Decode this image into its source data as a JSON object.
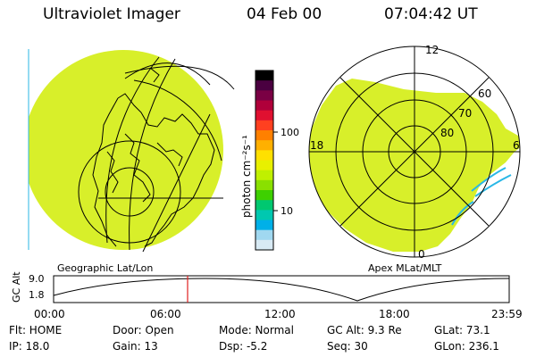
{
  "header": {
    "instrument": "Ultraviolet Imager",
    "date": "04 Feb 00",
    "time": "07:04:42 UT"
  },
  "colorbar": {
    "unit_label": "photon cm⁻²s⁻¹",
    "ticks": [
      "100",
      "10"
    ],
    "colors": [
      "#000000",
      "#4a0040",
      "#7a0044",
      "#b0003a",
      "#e01030",
      "#ff4020",
      "#ff8000",
      "#ffb000",
      "#ffe000",
      "#e8f000",
      "#c0f000",
      "#8ae000",
      "#3ed000",
      "#00c870",
      "#00c8b0",
      "#00b0e8",
      "#a0d8f0",
      "#d8eaf4"
    ]
  },
  "left_image": {
    "caption": "Geographic Lat/Lon",
    "fill_color": "#d8ef2a"
  },
  "right_image": {
    "caption": "Apex MLat/MLT",
    "fill_color": "#d8ef2a",
    "mlt_labels": {
      "top": "12",
      "left": "18",
      "right": "6",
      "bottom": "0"
    },
    "lat_labels": [
      "60",
      "70",
      "80"
    ]
  },
  "altitude_plot": {
    "axis_label": "GC Alt",
    "y_ticks": [
      "9.0",
      "1.8"
    ],
    "x_ticks": [
      "00:00",
      "06:00",
      "12:00",
      "18:00",
      "23:59"
    ],
    "current_marker_time": "07:04:42",
    "marker_color": "#e02020"
  },
  "info": {
    "flt": "Flt: HOME",
    "ip": "IP: 18.0",
    "door": "Door: Open",
    "gain": "Gain: 13",
    "mode": "Mode: Normal",
    "dsp": "Dsp:    -5.2",
    "gcalt": "GC Alt: 9.3 Re",
    "seq": "Seq: 30",
    "glat": "GLat:  73.1",
    "glon": "GLon: 236.1"
  }
}
